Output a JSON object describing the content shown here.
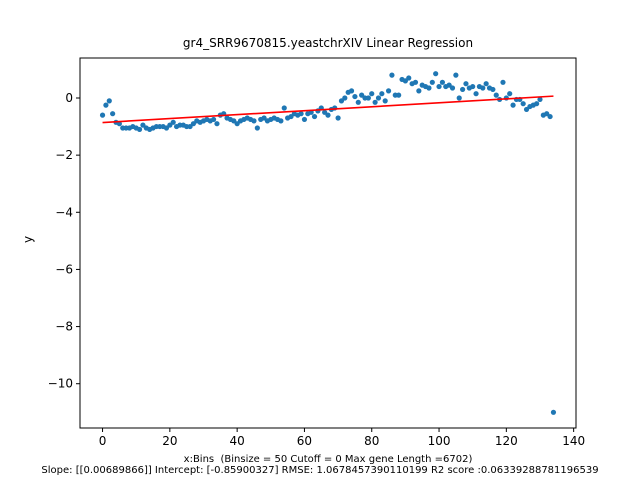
{
  "chart_data": {
    "type": "scatter",
    "title": "gr4_SRR9670815.yeastchrXIV Linear Regression",
    "xlabel": "x:Bins  (Binsize = 50 Cutoff = 0 Max gene Length =6702)",
    "ylabel": "y",
    "footer": "Slope: [[0.00689866]] Intercept: [-0.85900327] RMSE: 1.0678457390110199 R2 score :0.06339288781196539",
    "xlim": [
      -6.7,
      140.7
    ],
    "ylim": [
      -11.55,
      1.4
    ],
    "xticks": [
      0,
      20,
      40,
      60,
      80,
      100,
      120,
      140
    ],
    "yticks": [
      0,
      -2,
      -4,
      -6,
      -8,
      -10
    ],
    "x_tick_labels": [
      "0",
      "20",
      "40",
      "60",
      "80",
      "100",
      "120",
      "140"
    ],
    "y_tick_labels": [
      "0",
      "−2",
      "−4",
      "−6",
      "−8",
      "−10"
    ],
    "grid": false,
    "point_color": "#1f77b4",
    "line_color": "#ff0000",
    "regression": {
      "slope": 0.00689866,
      "intercept": -0.85900327,
      "x_range": [
        0,
        134
      ]
    },
    "y": [
      -0.6,
      -0.25,
      -0.1,
      -0.55,
      -0.85,
      -0.9,
      -1.05,
      -1.05,
      -1.05,
      -1.0,
      -1.05,
      -1.1,
      -0.95,
      -1.05,
      -1.1,
      -1.05,
      -1.0,
      -1.0,
      -1.0,
      -1.05,
      -0.95,
      -0.85,
      -1.0,
      -0.95,
      -0.95,
      -1.0,
      -1.0,
      -0.9,
      -0.8,
      -0.85,
      -0.8,
      -0.75,
      -0.8,
      -0.75,
      -0.9,
      -0.6,
      -0.55,
      -0.7,
      -0.75,
      -0.8,
      -0.9,
      -0.8,
      -0.75,
      -0.7,
      -0.75,
      -0.8,
      -1.05,
      -0.75,
      -0.7,
      -0.8,
      -0.75,
      -0.7,
      -0.75,
      -0.8,
      -0.35,
      -0.7,
      -0.65,
      -0.55,
      -0.6,
      -0.55,
      -0.75,
      -0.55,
      -0.5,
      -0.65,
      -0.45,
      -0.35,
      -0.5,
      -0.6,
      -0.4,
      -0.35,
      -0.7,
      -0.1,
      0.0,
      0.2,
      0.25,
      0.05,
      -0.15,
      0.1,
      0.0,
      0.0,
      0.15,
      -0.15,
      0.0,
      0.15,
      -0.1,
      0.25,
      0.8,
      0.1,
      0.1,
      0.65,
      0.6,
      0.7,
      0.5,
      0.55,
      0.25,
      0.45,
      0.4,
      0.35,
      0.55,
      0.85,
      0.4,
      0.55,
      0.4,
      0.45,
      0.35,
      0.8,
      0.0,
      0.3,
      0.5,
      0.35,
      0.4,
      0.15,
      0.4,
      0.35,
      0.5,
      0.35,
      0.3,
      0.1,
      -0.05,
      0.55,
      0.0,
      0.15,
      -0.25,
      -0.05,
      -0.05,
      -0.2,
      -0.4,
      -0.3,
      -0.25,
      -0.2,
      -0.05,
      -0.6,
      -0.55,
      -0.65,
      -11.0
    ]
  }
}
